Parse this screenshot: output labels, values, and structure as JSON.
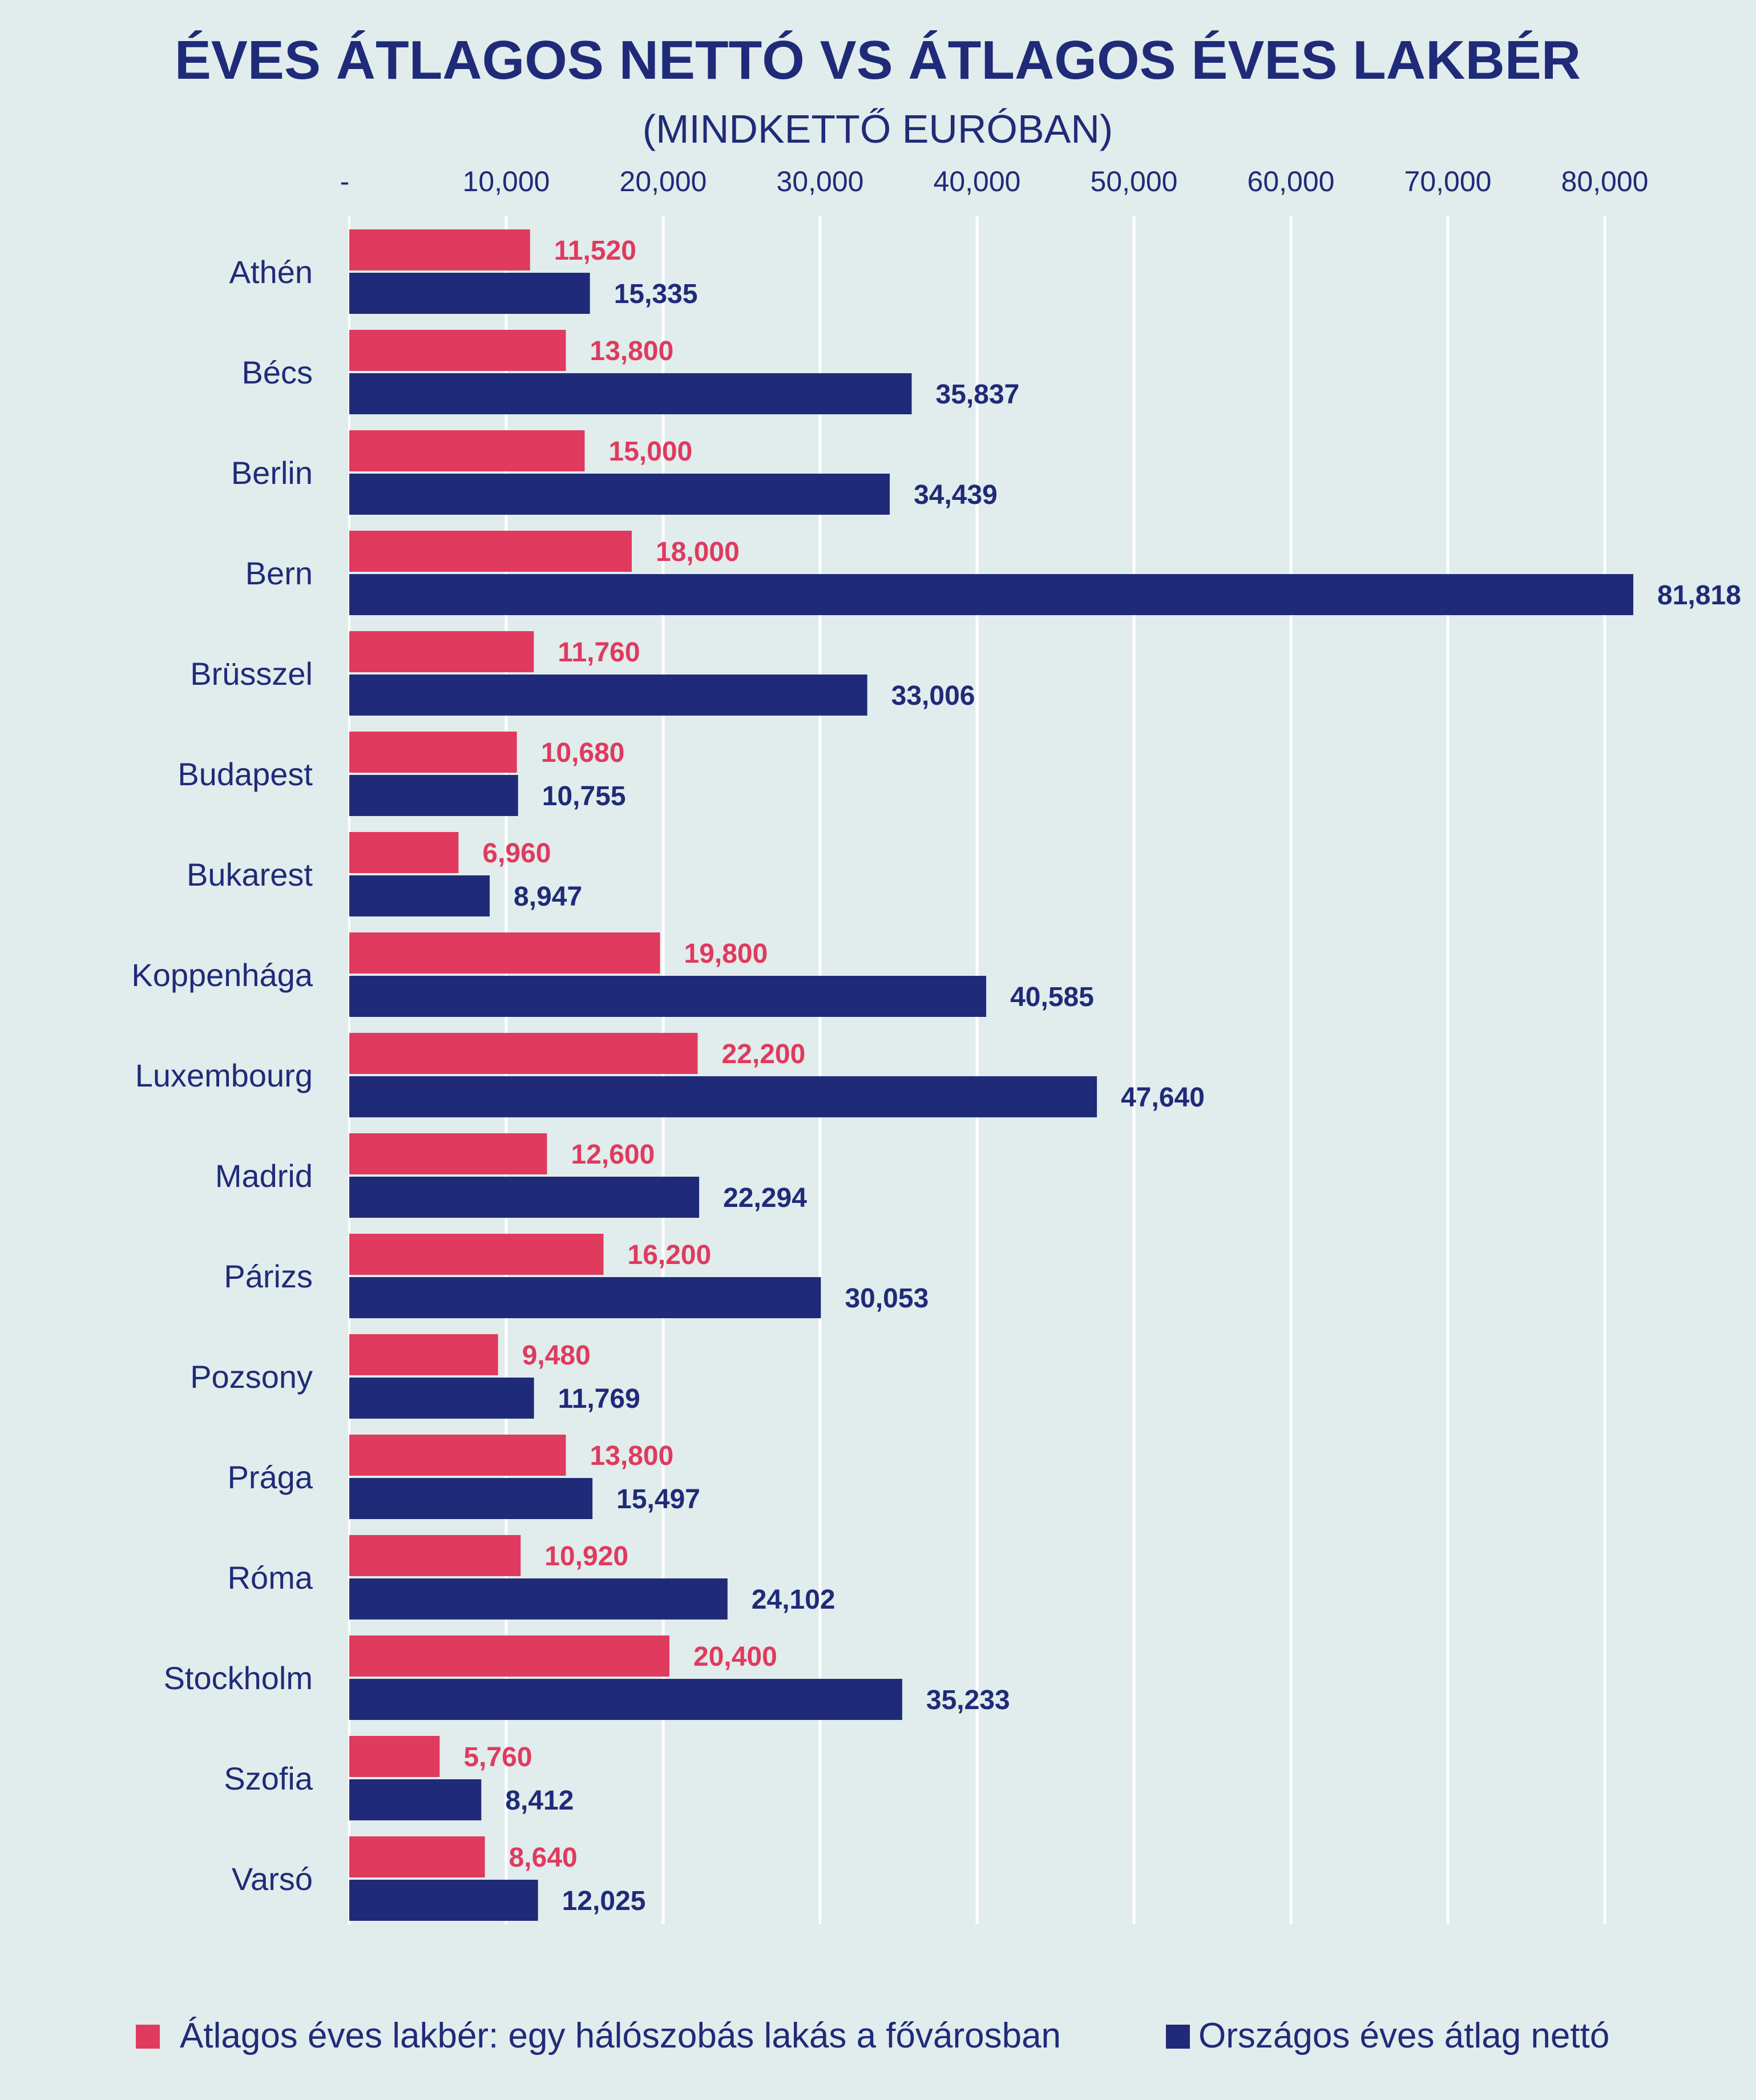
{
  "chart_data": {
    "type": "bar",
    "orientation": "horizontal",
    "title": "ÉVES ÁTLAGOS NETTÓ VS ÁTLAGOS ÉVES LAKBÉR",
    "subtitle": "(MINDKETTŐ EURÓBAN)",
    "xlabel": "",
    "ylabel": "",
    "xlim": [
      0,
      80000
    ],
    "x_ticks": [
      0,
      10000,
      20000,
      30000,
      40000,
      50000,
      60000,
      70000,
      80000
    ],
    "x_tick_labels": [
      "-",
      "10,000",
      "20,000",
      "30,000",
      "40,000",
      "50,000",
      "60,000",
      "70,000",
      "80,000"
    ],
    "axis_position": "top",
    "grid": true,
    "legend_position": "bottom",
    "categories": [
      "Athén",
      "Bécs",
      "Berlin",
      "Bern",
      "Brüsszel",
      "Budapest",
      "Bukarest",
      "Koppenhága",
      "Luxembourg",
      "Madrid",
      "Párizs",
      "Pozsony",
      "Prága",
      "Róma",
      "Stockholm",
      "Szofia",
      "Varsó"
    ],
    "series": [
      {
        "name": "Átlagos éves lakbér: egy hálószobás lakás a fővárosban",
        "color": "#e03a5e",
        "values": [
          11520,
          13800,
          15000,
          18000,
          11760,
          10680,
          6960,
          19800,
          22200,
          12600,
          16200,
          9480,
          13800,
          10920,
          20400,
          5760,
          8640
        ],
        "labels": [
          "11,520",
          "13,800",
          "15,000",
          "18,000",
          "11,760",
          "10,680",
          "6,960",
          "19,800",
          "22,200",
          "12,600",
          "16,200",
          "9,480",
          "13,800",
          "10,920",
          "20,400",
          "5,760",
          "8,640"
        ]
      },
      {
        "name": "Országos éves átlag nettó",
        "color": "#1f2b78",
        "values": [
          15335,
          35837,
          34439,
          81818,
          33006,
          10755,
          8947,
          40585,
          47640,
          22294,
          30053,
          11769,
          15497,
          24102,
          35233,
          8412,
          12025
        ],
        "labels": [
          "15,335",
          "35,837",
          "34,439",
          "81,818",
          "33,006",
          "10,755",
          "8,947",
          "40,585",
          "47,640",
          "22,294",
          "30,053",
          "11,769",
          "15,497",
          "24,102",
          "35,233",
          "8,412",
          "12,025"
        ]
      }
    ]
  },
  "colors": {
    "background": "#e1ecec",
    "title": "#1f2b78",
    "axis_text": "#1f2b78",
    "gridline": "#ffffff"
  }
}
